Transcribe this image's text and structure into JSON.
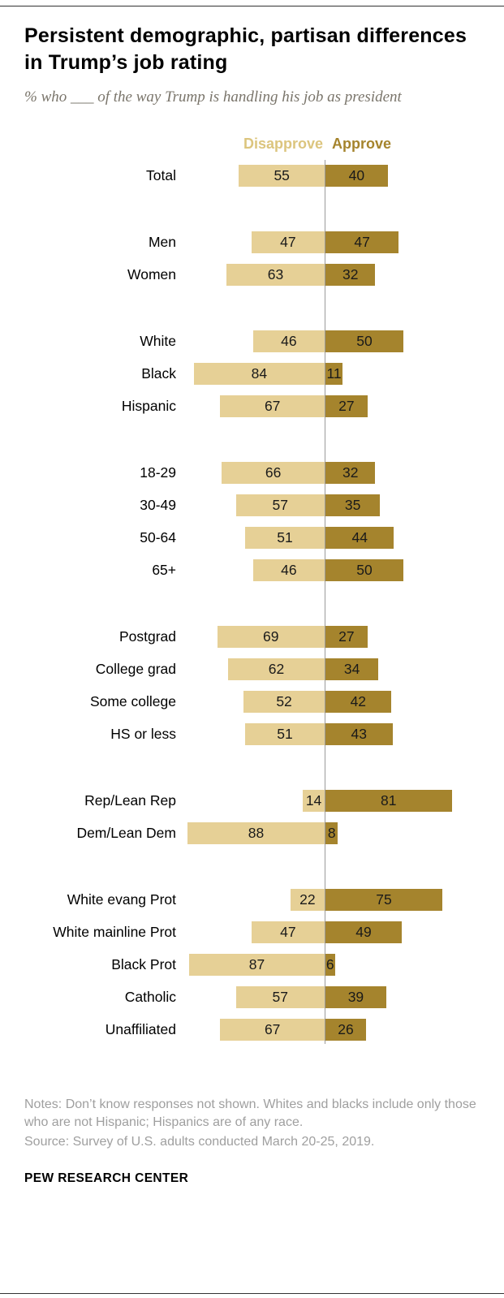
{
  "header": {
    "title": "Persistent demographic, partisan differences in Trump’s job rating",
    "subtitle": "% who ___ of the way Trump is handling his job as president"
  },
  "chart_data": {
    "type": "bar",
    "variant": "diverging-horizontal",
    "unit": "percent",
    "legend_position": "top",
    "series_labels": {
      "left": "Disapprove",
      "right": "Approve"
    },
    "colors": {
      "disapprove": "#e6d096",
      "approve": "#a5842d",
      "axis": "#9b9b9b"
    },
    "xlim": [
      -100,
      100
    ],
    "groups": [
      {
        "rows": [
          {
            "label": "Total",
            "disapprove": 55,
            "approve": 40
          }
        ]
      },
      {
        "rows": [
          {
            "label": "Men",
            "disapprove": 47,
            "approve": 47
          },
          {
            "label": "Women",
            "disapprove": 63,
            "approve": 32
          }
        ]
      },
      {
        "rows": [
          {
            "label": "White",
            "disapprove": 46,
            "approve": 50
          },
          {
            "label": "Black",
            "disapprove": 84,
            "approve": 11
          },
          {
            "label": "Hispanic",
            "disapprove": 67,
            "approve": 27
          }
        ]
      },
      {
        "rows": [
          {
            "label": "18-29",
            "disapprove": 66,
            "approve": 32
          },
          {
            "label": "30-49",
            "disapprove": 57,
            "approve": 35
          },
          {
            "label": "50-64",
            "disapprove": 51,
            "approve": 44
          },
          {
            "label": "65+",
            "disapprove": 46,
            "approve": 50
          }
        ]
      },
      {
        "rows": [
          {
            "label": "Postgrad",
            "disapprove": 69,
            "approve": 27
          },
          {
            "label": "College grad",
            "disapprove": 62,
            "approve": 34
          },
          {
            "label": "Some college",
            "disapprove": 52,
            "approve": 42
          },
          {
            "label": "HS or less",
            "disapprove": 51,
            "approve": 43
          }
        ]
      },
      {
        "rows": [
          {
            "label": "Rep/Lean Rep",
            "disapprove": 14,
            "approve": 81
          },
          {
            "label": "Dem/Lean Dem",
            "disapprove": 88,
            "approve": 8
          }
        ]
      },
      {
        "rows": [
          {
            "label": "White evang Prot",
            "disapprove": 22,
            "approve": 75
          },
          {
            "label": "White mainline Prot",
            "disapprove": 47,
            "approve": 49
          },
          {
            "label": "Black Prot",
            "disapprove": 87,
            "approve": 6
          },
          {
            "label": "Catholic",
            "disapprove": 57,
            "approve": 39
          },
          {
            "label": "Unaffiliated",
            "disapprove": 67,
            "approve": 26
          }
        ]
      }
    ]
  },
  "footer": {
    "notes": "Notes: Don’t know responses not shown. Whites and blacks include only those who are not Hispanic; Hispanics are of any race.",
    "source": "Source: Survey of U.S. adults conducted March 20-25, 2019.",
    "brand": "PEW RESEARCH CENTER"
  }
}
